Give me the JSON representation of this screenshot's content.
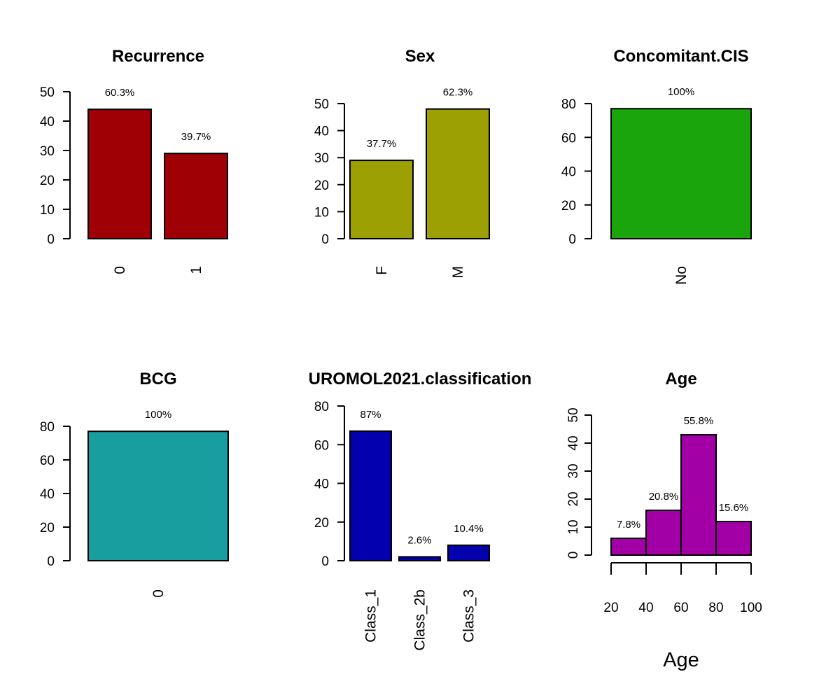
{
  "chart_data": [
    {
      "type": "bar",
      "title": "Recurrence",
      "categories": [
        "0",
        "1"
      ],
      "values": [
        44,
        29
      ],
      "labels": [
        "60.3%",
        "39.7%"
      ],
      "ylim": [
        0,
        50
      ],
      "yticks": [
        0,
        10,
        20,
        30,
        40,
        50
      ],
      "color": "#9e0006"
    },
    {
      "type": "bar",
      "title": "Sex",
      "categories": [
        "F",
        "M"
      ],
      "values": [
        29,
        48
      ],
      "labels": [
        "37.7%",
        "62.3%"
      ],
      "ylim": [
        0,
        50
      ],
      "yticks": [
        0,
        10,
        20,
        30,
        40,
        50
      ],
      "color": "#9ca003"
    },
    {
      "type": "bar",
      "title": "Concomitant.CIS",
      "categories": [
        "No"
      ],
      "values": [
        77
      ],
      "labels": [
        "100%"
      ],
      "ylim": [
        0,
        80
      ],
      "yticks": [
        0,
        20,
        40,
        60,
        80
      ],
      "color": "#1aa50c"
    },
    {
      "type": "bar",
      "title": "BCG",
      "categories": [
        "0"
      ],
      "values": [
        77
      ],
      "labels": [
        "100%"
      ],
      "ylim": [
        0,
        80
      ],
      "yticks": [
        0,
        20,
        40,
        60,
        80
      ],
      "color": "#189e9f"
    },
    {
      "type": "bar",
      "title": "UROMOL2021.classification",
      "categories": [
        "Class_1",
        "Class_2b",
        "Class_3"
      ],
      "values": [
        67,
        2,
        8
      ],
      "labels": [
        "87%",
        "2.6%",
        "10.4%"
      ],
      "ylim": [
        0,
        80
      ],
      "yticks": [
        0,
        20,
        40,
        60,
        80
      ],
      "color": "#0300ad"
    },
    {
      "type": "histogram",
      "title": "Age",
      "xlabel": "Age",
      "bins": [
        [
          20,
          40
        ],
        [
          40,
          60
        ],
        [
          60,
          80
        ],
        [
          80,
          100
        ]
      ],
      "values": [
        6,
        16,
        43,
        12
      ],
      "labels": [
        "7.8%",
        "20.8%",
        "55.8%",
        "15.6%"
      ],
      "xticks": [
        20,
        40,
        60,
        80,
        100
      ],
      "ylim": [
        0,
        50
      ],
      "yticks": [
        0,
        10,
        20,
        30,
        40,
        50
      ],
      "color": "#a200a6"
    }
  ]
}
